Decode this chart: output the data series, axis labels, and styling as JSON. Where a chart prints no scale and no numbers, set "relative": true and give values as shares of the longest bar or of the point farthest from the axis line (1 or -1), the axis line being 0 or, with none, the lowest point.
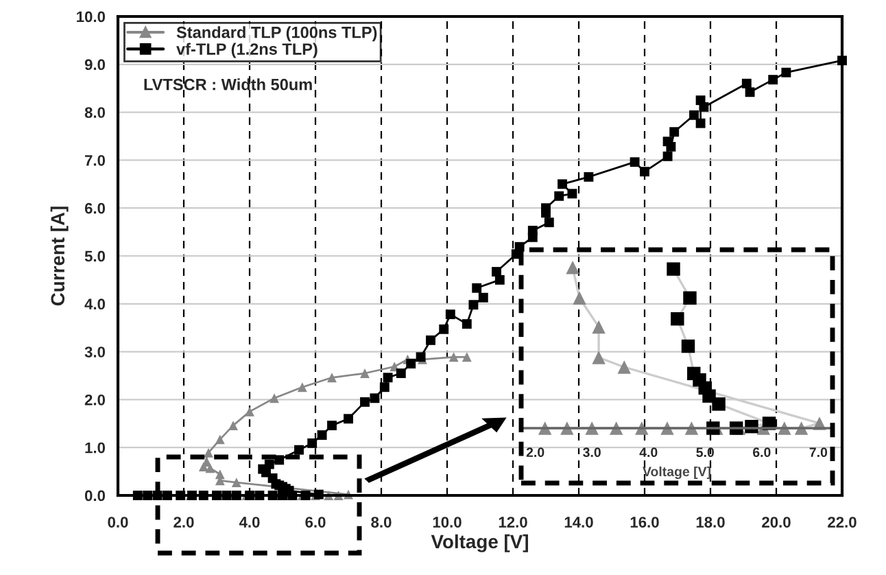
{
  "chart_data": [
    {
      "type": "line",
      "xlabel": "Voltage [V]",
      "ylabel": "Current [A]",
      "xlim": [
        0,
        22
      ],
      "ylim": [
        0,
        10
      ],
      "xticks": [
        {
          "value": 0,
          "label": "0.0"
        },
        {
          "value": 2,
          "label": "2.0"
        },
        {
          "value": 4,
          "label": "4.0"
        },
        {
          "value": 6,
          "label": "6.0"
        },
        {
          "value": 8,
          "label": "8.0"
        },
        {
          "value": 10,
          "label": "10.0"
        },
        {
          "value": 12,
          "label": "12.0"
        },
        {
          "value": 14,
          "label": "14.0"
        },
        {
          "value": 16,
          "label": "16.0"
        },
        {
          "value": 18,
          "label": "18.0"
        },
        {
          "value": 20,
          "label": "20.0"
        },
        {
          "value": 22,
          "label": "22.0"
        }
      ],
      "yticks": [
        {
          "value": 0,
          "label": "0.0"
        },
        {
          "value": 1,
          "label": "1.0"
        },
        {
          "value": 2,
          "label": "2.0"
        },
        {
          "value": 3,
          "label": "3.0"
        },
        {
          "value": 4,
          "label": "4.0"
        },
        {
          "value": 5,
          "label": "5.0"
        },
        {
          "value": 6,
          "label": "6.0"
        },
        {
          "value": 7,
          "label": "7.0"
        },
        {
          "value": 8,
          "label": "8.0"
        },
        {
          "value": 9,
          "label": "9.0"
        },
        {
          "value": 10,
          "label": "10.0"
        }
      ],
      "grid": true,
      "legend": "top left",
      "annotations": [
        "LVTSCR : Width 50um"
      ],
      "series": [
        {
          "name": "Standard TLP (100ns TLP)",
          "color": "#888888",
          "marker": "triangle",
          "x": [
            2.2,
            2.6,
            3.0,
            3.4,
            3.9,
            4.3,
            4.8,
            5.2,
            5.6,
            6.0,
            6.4,
            6.7,
            7.0,
            3.6,
            3.1,
            3.1,
            2.8,
            2.7,
            2.6,
            2.75,
            3.1,
            3.5,
            4.0,
            4.75,
            5.6,
            6.5,
            7.5,
            8.4,
            8.8,
            9.25,
            10.2,
            10.6
          ],
          "values": [
            0,
            0,
            0,
            0,
            0,
            0,
            0,
            0,
            0,
            0,
            0,
            0,
            0.02,
            0.27,
            0.31,
            0.44,
            0.57,
            0.7,
            0.6,
            0.89,
            1.17,
            1.46,
            1.75,
            2.03,
            2.26,
            2.46,
            2.55,
            2.69,
            2.84,
            2.84,
            2.89,
            2.89
          ]
        },
        {
          "name": "vf-TLP (1.2ns TLP)",
          "color": "#000000",
          "marker": "square",
          "x": [
            0.6,
            0.9,
            1.2,
            1.5,
            1.9,
            2.25,
            2.6,
            3.0,
            3.3,
            3.6,
            4.0,
            4.3,
            4.7,
            5.0,
            5.3,
            5.7,
            6.1,
            5.2,
            5.1,
            5.0,
            4.9,
            4.8,
            4.7,
            4.5,
            4.4,
            4.6,
            4.9,
            5.5,
            5.9,
            6.2,
            6.5,
            7.0,
            7.5,
            7.8,
            8.1,
            8.2,
            8.6,
            8.9,
            9.2,
            9.5,
            9.9,
            10.1,
            10.6,
            10.8,
            11.1,
            10.9,
            11.6,
            11.5,
            12.1,
            12.2,
            12.6,
            12.6,
            13.1,
            13.0,
            13.0,
            13.4,
            13.8,
            13.5,
            14.3,
            15.7,
            16.0,
            16.7,
            16.7,
            16.8,
            16.9,
            17.5,
            17.7,
            17.7,
            17.8,
            19.1,
            19.2,
            19.9,
            20.3,
            22.0
          ],
          "values": [
            0,
            0,
            0,
            0,
            0,
            0,
            0,
            0,
            0,
            0,
            0,
            0,
            0,
            0,
            0,
            0,
            0.02,
            0.1,
            0.14,
            0.18,
            0.21,
            0.24,
            0.36,
            0.48,
            0.55,
            0.65,
            0.74,
            0.95,
            1.09,
            1.26,
            1.46,
            1.6,
            1.95,
            2.03,
            2.26,
            2.46,
            2.55,
            2.75,
            2.89,
            3.24,
            3.47,
            3.78,
            3.58,
            3.98,
            4.13,
            4.33,
            4.5,
            4.67,
            5.04,
            5.19,
            5.39,
            5.53,
            5.7,
            5.9,
            6.0,
            6.25,
            6.3,
            6.5,
            6.65,
            6.96,
            6.76,
            7.08,
            7.39,
            7.28,
            7.59,
            7.94,
            7.77,
            8.25,
            8.11,
            8.6,
            8.42,
            8.68,
            8.83,
            9.08
          ]
        }
      ]
    },
    {
      "type": "line",
      "xlabel": "Voltage [V]",
      "relative": true,
      "tick_labels": "x",
      "xlim": [
        1.75,
        7.25
      ],
      "xticks": [
        {
          "value": 2,
          "label": "2.0"
        },
        {
          "value": 3,
          "label": "3.0"
        },
        {
          "value": 4,
          "label": "4.0"
        },
        {
          "value": 5,
          "label": "5.0"
        },
        {
          "value": 6,
          "label": "6.0"
        },
        {
          "value": 7,
          "label": "7.0"
        }
      ],
      "series": [
        {
          "color": "#888888",
          "marker": "triangle",
          "x": [
            2.17,
            2.56,
            3.0,
            3.43,
            3.88,
            4.33,
            4.76,
            5.2,
            5.6,
            6.03,
            6.4,
            6.7,
            7.02,
            3.57,
            3.12,
            3.12,
            2.78,
            2.66
          ],
          "values": [
            0,
            0,
            0,
            0,
            0,
            0,
            0,
            0,
            0,
            0,
            0,
            0,
            0.03,
            0.38,
            0.44,
            0.63,
            0.81,
            1.0
          ]
        },
        {
          "color": "#000000",
          "marker": "square",
          "x": [
            5.14,
            5.55,
            5.82,
            6.13,
            5.24,
            5.07,
            5.0,
            4.9,
            4.8,
            4.7,
            4.51,
            4.73,
            4.44
          ],
          "values": [
            0,
            0,
            0.01,
            0.03,
            0.15,
            0.2,
            0.25,
            0.3,
            0.34,
            0.51,
            0.68,
            0.81,
            0.99
          ]
        }
      ]
    }
  ]
}
